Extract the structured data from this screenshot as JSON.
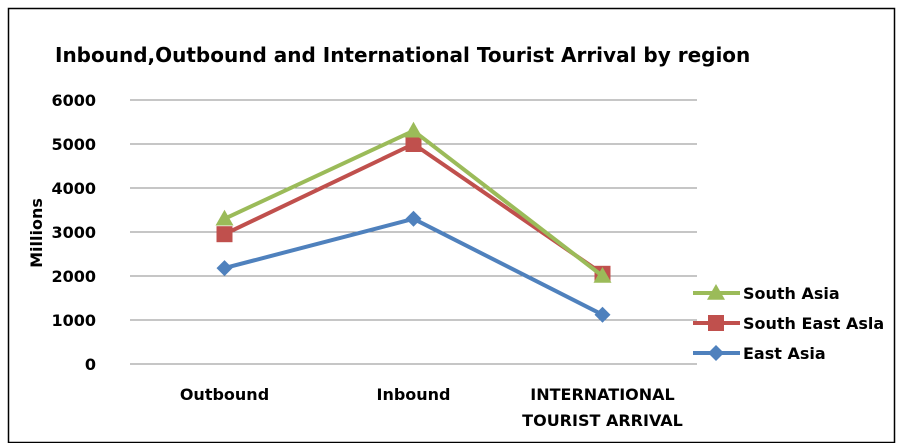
{
  "chart_data": {
    "type": "line",
    "title": "Inbound,Outbound  and International Tourist Arrival by region",
    "ylabel": "Millions",
    "xlabel": "",
    "categories": [
      "Outbound",
      "Inbound",
      "INTERNATIONAL TOURIST ARRIVAL"
    ],
    "category_lines": [
      [
        "Outbound"
      ],
      [
        "Inbound"
      ],
      [
        "INTERNATIONAL",
        "TOURIST ARRIVAL"
      ]
    ],
    "ylim": [
      0,
      6000
    ],
    "yticks": [
      0,
      1000,
      2000,
      3000,
      4000,
      5000,
      6000
    ],
    "grid": true,
    "legend_position": "right",
    "series": [
      {
        "name": "South Asia",
        "values": [
          3300,
          5300,
          2000
        ],
        "color": "#9bbb59",
        "marker": "triangle"
      },
      {
        "name": "South East Asla",
        "values": [
          2950,
          5000,
          2050
        ],
        "color": "#c0504d",
        "marker": "square"
      },
      {
        "name": "East Asia",
        "values": [
          2180,
          3300,
          1120
        ],
        "color": "#4f81bd",
        "marker": "diamond"
      }
    ]
  }
}
